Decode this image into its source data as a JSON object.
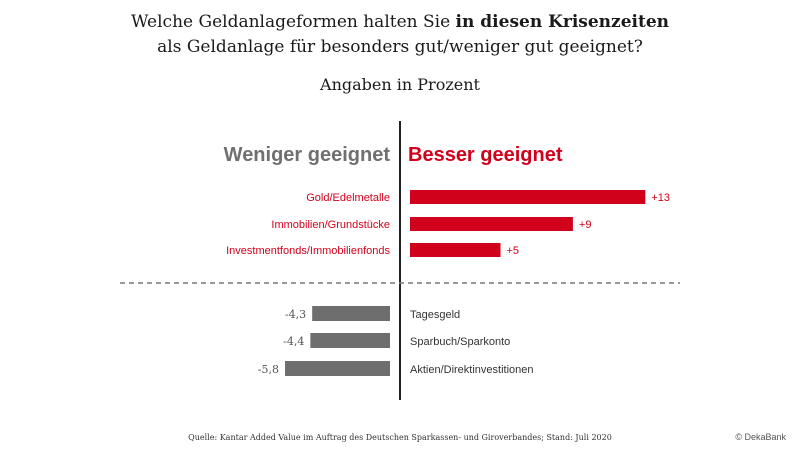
{
  "title": {
    "line1_pre": "Welche Geldanlageformen halten Sie ",
    "line1_bold": "in diesen Krisenzeiten",
    "line2": "als Geldanlage für besonders gut/weniger gut geeignet?"
  },
  "subtitle": "Angaben in Prozent",
  "colors": {
    "positive": "#d0021b",
    "negative": "#6e6e6e",
    "axis": "#222222",
    "divider": "#777777"
  },
  "chart_data": {
    "type": "bar",
    "orientation": "horizontal-diverging",
    "left_heading": "Weniger geeignet",
    "right_heading": "Besser geeignet",
    "positive": [
      {
        "category": "Gold/Edelmetalle",
        "value": 13,
        "label": "+13"
      },
      {
        "category": "Immobilien/Grundstücke",
        "value": 9,
        "label": "+9"
      },
      {
        "category": "Investmentfonds/Immobilienfonds",
        "value": 5,
        "label": "+5"
      }
    ],
    "negative": [
      {
        "category": "Tagesgeld",
        "value": -4.3,
        "label": "-4,3"
      },
      {
        "category": "Sparbuch/Sparkonto",
        "value": -4.4,
        "label": "-4,4"
      },
      {
        "category": "Aktien/Direktinvestitionen",
        "value": -5.8,
        "label": "-5,8"
      }
    ]
  },
  "footer": "Quelle: Kantar Added Value im Auftrag des Deutschen Sparkassen- und Giroverbandes; Stand: Juli 2020",
  "copyright": "© DekaBank"
}
